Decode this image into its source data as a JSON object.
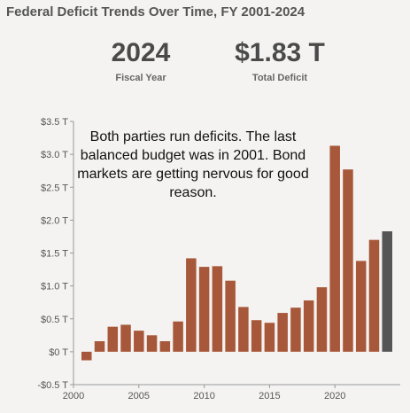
{
  "title": "Federal Deficit Trends Over Time, FY 2001-2024",
  "kpis": {
    "year": {
      "value": "2024",
      "label": "Fiscal Year"
    },
    "deficit": {
      "value": "$1.83 T",
      "label": "Total Deficit"
    }
  },
  "annotation": "Both parties run deficits. The last balanced budget was in 2001. Bond markets are getting nervous for good reason.",
  "colors": {
    "bar": "#a8583a",
    "highlight": "#555555",
    "grid": "#dcdcdc",
    "axis": "#999999"
  },
  "chart_data": {
    "type": "bar",
    "title": "Federal Deficit Trends Over Time, FY 2001-2024",
    "xlabel": "",
    "ylabel": "",
    "x": [
      2001,
      2002,
      2003,
      2004,
      2005,
      2006,
      2007,
      2008,
      2009,
      2010,
      2011,
      2012,
      2013,
      2014,
      2015,
      2016,
      2017,
      2018,
      2019,
      2020,
      2021,
      2022,
      2023,
      2024
    ],
    "values": [
      -0.13,
      0.16,
      0.38,
      0.41,
      0.32,
      0.25,
      0.16,
      0.46,
      1.42,
      1.29,
      1.3,
      1.08,
      0.68,
      0.48,
      0.44,
      0.59,
      0.67,
      0.78,
      0.98,
      3.13,
      2.77,
      1.38,
      1.7,
      1.83
    ],
    "highlight_x": 2024,
    "ylim": [
      -0.5,
      3.5
    ],
    "xlim": [
      2000,
      2025
    ],
    "yticks": [
      -0.5,
      0,
      0.5,
      1.0,
      1.5,
      2.0,
      2.5,
      3.0,
      3.5
    ],
    "ytick_labels": [
      "-$0.5 T",
      "$0 T",
      "$0.5 T",
      "$1.0 T",
      "$1.5 T",
      "$2.0 T",
      "$2.5 T",
      "$3.0 T",
      "$3.5 T"
    ],
    "xticks": [
      2000,
      2005,
      2010,
      2015,
      2020
    ],
    "xtick_labels": [
      "2000",
      "2005",
      "2010",
      "2015",
      "2020"
    ],
    "grid": false
  }
}
